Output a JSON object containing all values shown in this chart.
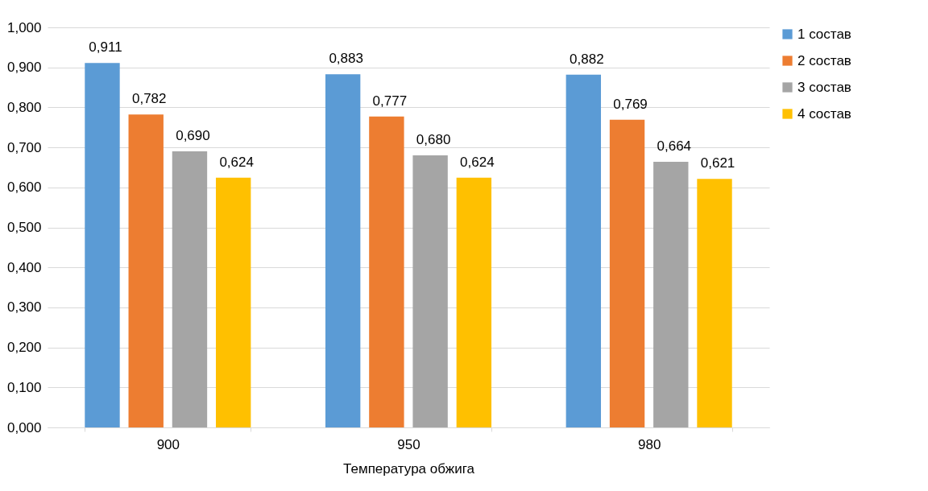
{
  "chart_data": {
    "type": "bar",
    "xlabel": "Температура обжига",
    "categories": [
      "900",
      "950",
      "980"
    ],
    "series": [
      {
        "name": "1 состав",
        "color": "#5b9bd5",
        "values": [
          0.911,
          0.883,
          0.882
        ],
        "value_labels": [
          "0,911",
          "0,883",
          "0,882"
        ]
      },
      {
        "name": "2 состав",
        "color": "#ed7d31",
        "values": [
          0.782,
          0.777,
          0.769
        ],
        "value_labels": [
          "0,782",
          "0,777",
          "0,769"
        ]
      },
      {
        "name": "3 состав",
        "color": "#a5a5a5",
        "values": [
          0.69,
          0.68,
          0.664
        ],
        "value_labels": [
          "0,690",
          "0,680",
          "0,664"
        ]
      },
      {
        "name": "4 состав",
        "color": "#ffc000",
        "values": [
          0.624,
          0.624,
          0.621
        ],
        "value_labels": [
          "0,624",
          "0,624",
          "0,621"
        ]
      }
    ],
    "ylim": [
      0,
      1
    ],
    "yticks": [
      {
        "value": 0,
        "label": "0,000"
      },
      {
        "value": 0.1,
        "label": "0,100"
      },
      {
        "value": 0.2,
        "label": "0,200"
      },
      {
        "value": 0.3,
        "label": "0,300"
      },
      {
        "value": 0.4,
        "label": "0,400"
      },
      {
        "value": 0.5,
        "label": "0,500"
      },
      {
        "value": 0.6,
        "label": "0,600"
      },
      {
        "value": 0.7,
        "label": "0,700"
      },
      {
        "value": 0.8,
        "label": "0,800"
      },
      {
        "value": 0.9,
        "label": "0,900"
      },
      {
        "value": 1,
        "label": "1,000"
      }
    ],
    "grid": "y",
    "legend": "right"
  }
}
